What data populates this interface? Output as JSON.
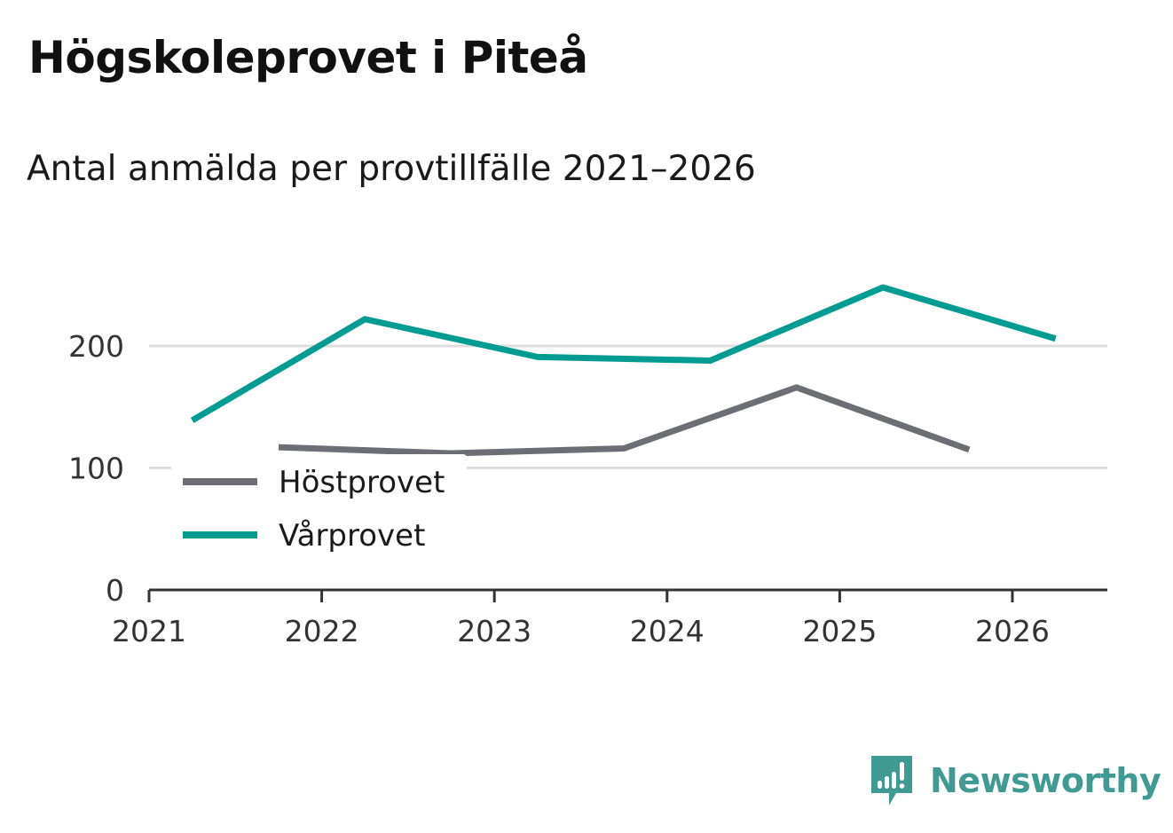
{
  "header": {
    "title": "Högskoleprovet i Piteå",
    "subtitle": "Antal anmälda per provtillfälle 2021–2026"
  },
  "brand": {
    "name": "Newsworthy",
    "icon": "newsworthy-logo-icon",
    "color": "#3e9a93"
  },
  "chart_data": {
    "type": "line",
    "title": "Högskoleprovet i Piteå",
    "subtitle": "Antal anmälda per provtillfälle 2021–2026",
    "xlabel": "",
    "ylabel": "",
    "xlim": [
      2021,
      2026.55
    ],
    "ylim": [
      0,
      200
    ],
    "x_ticks": [
      "2021",
      "2022",
      "2023",
      "2024",
      "2025",
      "2026"
    ],
    "y_ticks": [
      "0",
      "100",
      "200"
    ],
    "grid": true,
    "legend": "bottom-left",
    "series": [
      {
        "name": "Höstprovet",
        "color": "#6d6d75",
        "x": [
          2021.75,
          2022.75,
          2023.75,
          2024.75,
          2025.75
        ],
        "values": [
          117,
          112,
          116,
          166,
          115
        ]
      },
      {
        "name": "Vårprovet",
        "color": "#009c92",
        "x": [
          2021.25,
          2022.25,
          2023.25,
          2024.25,
          2025.25,
          2026.25
        ],
        "values": [
          139,
          222,
          191,
          188,
          248,
          206
        ]
      }
    ]
  }
}
